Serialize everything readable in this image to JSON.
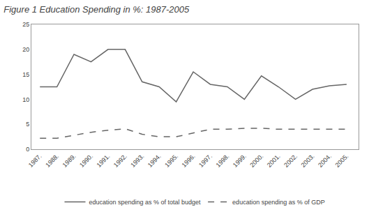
{
  "chart_data": {
    "type": "line",
    "title": "Figure 1 Education Spending in %: 1987-2005",
    "x": [
      1987,
      1988,
      1989,
      1990,
      1991,
      1992,
      1993,
      1994,
      1995,
      1996,
      1997,
      1998,
      1999,
      2000,
      2001,
      2002,
      2003,
      2004,
      2005
    ],
    "series": [
      {
        "name": "education spending as % of total budget",
        "color": "#666666",
        "line_style": "solid",
        "values": [
          12.5,
          12.5,
          19.0,
          17.5,
          20.0,
          20.0,
          13.5,
          12.5,
          9.5,
          15.5,
          13.0,
          12.5,
          10.0,
          14.7,
          12.5,
          10.0,
          12.0,
          12.7,
          13.0
        ]
      },
      {
        "name": "education spending as % of GDP",
        "color": "#666666",
        "line_style": "dashed",
        "values": [
          2.2,
          2.2,
          2.8,
          3.4,
          3.8,
          4.1,
          3.0,
          2.5,
          2.5,
          3.3,
          4.0,
          4.0,
          4.2,
          4.2,
          4.0,
          4.0,
          4.0,
          4.0,
          4.0
        ]
      }
    ],
    "xlim": [
      1986.5,
      2005.7
    ],
    "xticks": [
      {
        "value": 1987,
        "label": "1987."
      },
      {
        "value": 1988,
        "label": "1988."
      },
      {
        "value": 1989,
        "label": "1989."
      },
      {
        "value": 1990,
        "label": "1990."
      },
      {
        "value": 1991,
        "label": "1991."
      },
      {
        "value": 1992,
        "label": "1992."
      },
      {
        "value": 1993,
        "label": "1993."
      },
      {
        "value": 1994,
        "label": "1994."
      },
      {
        "value": 1995,
        "label": "1995."
      },
      {
        "value": 1996,
        "label": "1996."
      },
      {
        "value": 1997,
        "label": "1997."
      },
      {
        "value": 1998,
        "label": "1998."
      },
      {
        "value": 1999,
        "label": "1999."
      },
      {
        "value": 2000,
        "label": "2000."
      },
      {
        "value": 2001,
        "label": "2001."
      },
      {
        "value": 2002,
        "label": "2002."
      },
      {
        "value": 2003,
        "label": "2003."
      },
      {
        "value": 2004,
        "label": "2004."
      },
      {
        "value": 2005,
        "label": "2005."
      }
    ],
    "ylim": [
      0,
      25
    ],
    "yticks": [
      0,
      5,
      10,
      15,
      20,
      25
    ],
    "grid": false,
    "legend": "bottom"
  }
}
